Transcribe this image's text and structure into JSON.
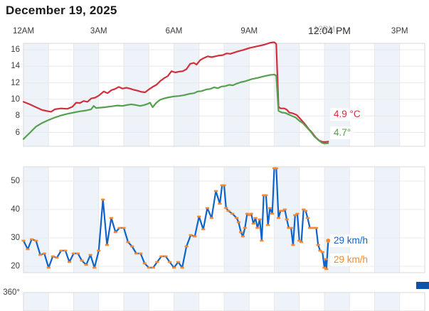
{
  "page": {
    "title": "December 19, 2025",
    "current_time_label": "12:04 PM"
  },
  "colors": {
    "temperature_line": "#d12f3b",
    "secondary_temperature_line": "#55a04f",
    "wind_line": "#1063c8",
    "wind_marker": "#f68a33",
    "band": "#eef3f9",
    "grid": "#e8e8e8",
    "border": "#d9d9d9",
    "legend_swatch": "#0953ad"
  },
  "chart_data": [
    {
      "id": "temperature",
      "type": "line",
      "title": "",
      "xlabel": "",
      "ylabel": "",
      "x_unit": "hours-from-midnight",
      "xlim": [
        0,
        16
      ],
      "ylim": [
        4.3,
        17
      ],
      "grid": true,
      "shaded_hours": [
        0,
        2,
        4,
        6,
        8,
        10,
        12,
        14
      ],
      "yticks": [
        16,
        14,
        12,
        10,
        8,
        6
      ],
      "xticks": [
        {
          "t": 0,
          "label": "12AM",
          "muted": false
        },
        {
          "t": 3,
          "label": "3AM",
          "muted": false
        },
        {
          "t": 6,
          "label": "6AM",
          "muted": false
        },
        {
          "t": 9,
          "label": "9AM",
          "muted": false
        },
        {
          "t": 12,
          "label": "12PM",
          "muted": true
        },
        {
          "t": 15,
          "label": "3PM",
          "muted": false
        }
      ],
      "current_time_t": 12.2,
      "series": [
        {
          "name": "temperature",
          "color": "#d12f3b",
          "end_label": {
            "text": "4.9 °C",
            "value": 4.9
          },
          "points": [
            [
              0,
              9.7
            ],
            [
              0.25,
              9.4
            ],
            [
              0.5,
              9.05
            ],
            [
              0.75,
              8.7
            ],
            [
              1,
              8.55
            ],
            [
              1.1,
              8.5
            ],
            [
              1.25,
              8.8
            ],
            [
              1.5,
              8.9
            ],
            [
              1.75,
              8.85
            ],
            [
              1.95,
              9.1
            ],
            [
              2.1,
              9.6
            ],
            [
              2.25,
              9.55
            ],
            [
              2.4,
              9.8
            ],
            [
              2.55,
              9.7
            ],
            [
              2.7,
              10.1
            ],
            [
              2.85,
              10.2
            ],
            [
              3,
              10.45
            ],
            [
              3.2,
              10.95
            ],
            [
              3.35,
              10.75
            ],
            [
              3.5,
              11.1
            ],
            [
              3.65,
              11.25
            ],
            [
              3.8,
              11.5
            ],
            [
              3.95,
              11.3
            ],
            [
              4.1,
              11.4
            ],
            [
              4.25,
              11.3
            ],
            [
              4.4,
              11.15
            ],
            [
              4.55,
              11.05
            ],
            [
              4.7,
              10.9
            ],
            [
              4.85,
              10.85
            ],
            [
              5,
              11.2
            ],
            [
              5.15,
              11.5
            ],
            [
              5.3,
              11.75
            ],
            [
              5.45,
              12.2
            ],
            [
              5.6,
              12.55
            ],
            [
              5.75,
              12.8
            ],
            [
              5.9,
              13.4
            ],
            [
              6.05,
              13.25
            ],
            [
              6.2,
              13.35
            ],
            [
              6.35,
              13.4
            ],
            [
              6.5,
              13.65
            ],
            [
              6.65,
              14.3
            ],
            [
              6.8,
              14.4
            ],
            [
              6.9,
              14.2
            ],
            [
              7.05,
              14.75
            ],
            [
              7.2,
              15.0
            ],
            [
              7.35,
              15.2
            ],
            [
              7.5,
              15.1
            ],
            [
              7.65,
              15.2
            ],
            [
              7.8,
              15.3
            ],
            [
              7.95,
              15.35
            ],
            [
              8.1,
              15.55
            ],
            [
              8.25,
              15.5
            ],
            [
              8.4,
              15.65
            ],
            [
              8.55,
              15.8
            ],
            [
              8.75,
              15.95
            ],
            [
              9,
              16.2
            ],
            [
              9.3,
              16.4
            ],
            [
              9.6,
              16.6
            ],
            [
              9.85,
              16.85
            ],
            [
              10,
              16.9
            ],
            [
              10.08,
              16.7
            ],
            [
              10.17,
              9.1
            ],
            [
              10.25,
              8.9
            ],
            [
              10.4,
              8.9
            ],
            [
              10.5,
              8.75
            ],
            [
              10.6,
              8.4
            ],
            [
              10.75,
              8.3
            ],
            [
              10.9,
              8.1
            ],
            [
              11.05,
              7.6
            ],
            [
              11.2,
              7.1
            ],
            [
              11.35,
              6.5
            ],
            [
              11.5,
              6.0
            ],
            [
              11.65,
              5.4
            ],
            [
              11.8,
              5.0
            ],
            [
              11.95,
              4.85
            ],
            [
              12.05,
              4.85
            ],
            [
              12.15,
              4.9
            ]
          ]
        },
        {
          "name": "secondary-temperature",
          "color": "#55a04f",
          "end_label": {
            "text": "4.7°",
            "value": 4.7
          },
          "points": [
            [
              0,
              5.2
            ],
            [
              0.25,
              5.95
            ],
            [
              0.5,
              6.7
            ],
            [
              0.75,
              7.15
            ],
            [
              1,
              7.5
            ],
            [
              1.25,
              7.8
            ],
            [
              1.5,
              8.05
            ],
            [
              1.75,
              8.25
            ],
            [
              2,
              8.4
            ],
            [
              2.25,
              8.55
            ],
            [
              2.5,
              8.65
            ],
            [
              2.7,
              8.8
            ],
            [
              2.8,
              9.2
            ],
            [
              2.9,
              8.95
            ],
            [
              3.05,
              9.0
            ],
            [
              3.25,
              9.05
            ],
            [
              3.5,
              9.15
            ],
            [
              3.75,
              9.25
            ],
            [
              3.95,
              9.2
            ],
            [
              4.1,
              9.3
            ],
            [
              4.3,
              9.4
            ],
            [
              4.5,
              9.3
            ],
            [
              4.65,
              9.2
            ],
            [
              4.8,
              9.3
            ],
            [
              4.95,
              9.45
            ],
            [
              5.05,
              9.6
            ],
            [
              5.15,
              9.05
            ],
            [
              5.3,
              9.6
            ],
            [
              5.45,
              9.95
            ],
            [
              5.6,
              10.1
            ],
            [
              5.8,
              10.25
            ],
            [
              6,
              10.35
            ],
            [
              6.2,
              10.4
            ],
            [
              6.4,
              10.5
            ],
            [
              6.6,
              10.65
            ],
            [
              6.8,
              10.75
            ],
            [
              6.95,
              10.95
            ],
            [
              7.1,
              11.0
            ],
            [
              7.3,
              11.2
            ],
            [
              7.45,
              11.25
            ],
            [
              7.6,
              11.45
            ],
            [
              7.75,
              11.35
            ],
            [
              7.9,
              11.55
            ],
            [
              8.05,
              11.6
            ],
            [
              8.2,
              11.75
            ],
            [
              8.35,
              11.7
            ],
            [
              8.5,
              11.9
            ],
            [
              8.65,
              12.05
            ],
            [
              8.85,
              12.2
            ],
            [
              9.1,
              12.45
            ],
            [
              9.35,
              12.6
            ],
            [
              9.6,
              12.8
            ],
            [
              9.85,
              12.95
            ],
            [
              10,
              13.0
            ],
            [
              10.08,
              12.85
            ],
            [
              10.17,
              8.6
            ],
            [
              10.3,
              8.4
            ],
            [
              10.45,
              8.35
            ],
            [
              10.55,
              8.2
            ],
            [
              10.7,
              8.0
            ],
            [
              10.85,
              7.8
            ],
            [
              11,
              7.4
            ],
            [
              11.15,
              7.1
            ],
            [
              11.3,
              6.6
            ],
            [
              11.45,
              6.1
            ],
            [
              11.6,
              5.5
            ],
            [
              11.75,
              5.1
            ],
            [
              11.9,
              4.75
            ],
            [
              12.0,
              4.65
            ],
            [
              12.15,
              4.7
            ]
          ]
        }
      ]
    },
    {
      "id": "wind-speed",
      "type": "line",
      "title": "",
      "xlabel": "",
      "ylabel": "",
      "x_unit": "hours-from-midnight",
      "xlim": [
        0,
        16
      ],
      "ylim": [
        18,
        55
      ],
      "grid": true,
      "shaded_hours": [
        0,
        2,
        4,
        6,
        8,
        10,
        12,
        14
      ],
      "yticks": [
        50,
        40,
        30,
        20
      ],
      "series": [
        {
          "name": "wind-speed",
          "color": "#1063c8",
          "marker_color": "#f68a33",
          "end_labels": [
            {
              "text": "29 km/h",
              "value": 29,
              "color": "#1063c8"
            },
            {
              "text": "29 km/h",
              "value": 29,
              "color": "#f68a33"
            }
          ],
          "points": [
            [
              0,
              29
            ],
            [
              0.17,
              26
            ],
            [
              0.33,
              29.5
            ],
            [
              0.5,
              29
            ],
            [
              0.67,
              24
            ],
            [
              0.83,
              24.5
            ],
            [
              1,
              19.5
            ],
            [
              1.17,
              23.5
            ],
            [
              1.33,
              23
            ],
            [
              1.5,
              25.5
            ],
            [
              1.67,
              25.5
            ],
            [
              1.83,
              21.5
            ],
            [
              2,
              24.5
            ],
            [
              2.17,
              24.5
            ],
            [
              2.33,
              22
            ],
            [
              2.5,
              20.5
            ],
            [
              2.67,
              24
            ],
            [
              2.83,
              19.5
            ],
            [
              3,
              25.5
            ],
            [
              3.17,
              43.5
            ],
            [
              3.33,
              27.5
            ],
            [
              3.5,
              37
            ],
            [
              3.67,
              32
            ],
            [
              3.83,
              33.5
            ],
            [
              4,
              33.5
            ],
            [
              4.17,
              28.5
            ],
            [
              4.33,
              27
            ],
            [
              4.5,
              24.5
            ],
            [
              4.67,
              24.5
            ],
            [
              4.83,
              21
            ],
            [
              5,
              19.5
            ],
            [
              5.17,
              19.5
            ],
            [
              5.33,
              21.5
            ],
            [
              5.5,
              23.5
            ],
            [
              5.67,
              23.5
            ],
            [
              5.83,
              21.5
            ],
            [
              6,
              19.5
            ],
            [
              6.17,
              21.5
            ],
            [
              6.33,
              19.5
            ],
            [
              6.5,
              27
            ],
            [
              6.67,
              31
            ],
            [
              6.83,
              30.5
            ],
            [
              7,
              37.5
            ],
            [
              7.17,
              33
            ],
            [
              7.33,
              40.5
            ],
            [
              7.5,
              37
            ],
            [
              7.67,
              46.5
            ],
            [
              7.83,
              42
            ],
            [
              7.92,
              48.5
            ],
            [
              8,
              48.5
            ],
            [
              8.08,
              40.5
            ],
            [
              8.17,
              39.5
            ],
            [
              8.33,
              38.5
            ],
            [
              8.5,
              37
            ],
            [
              8.58,
              35.5
            ],
            [
              8.67,
              32
            ],
            [
              8.75,
              30.5
            ],
            [
              8.83,
              33.5
            ],
            [
              8.92,
              38.5
            ],
            [
              9,
              38
            ],
            [
              9.08,
              38.5
            ],
            [
              9.17,
              35
            ],
            [
              9.25,
              37
            ],
            [
              9.33,
              33.5
            ],
            [
              9.42,
              36.5
            ],
            [
              9.5,
              29
            ],
            [
              9.58,
              45
            ],
            [
              9.67,
              45
            ],
            [
              9.75,
              34.5
            ],
            [
              9.83,
              40.5
            ],
            [
              9.92,
              38.5
            ],
            [
              10,
              54.5
            ],
            [
              10.08,
              54.5
            ],
            [
              10.17,
              37
            ],
            [
              10.25,
              39.5
            ],
            [
              10.33,
              39.5
            ],
            [
              10.42,
              40
            ],
            [
              10.5,
              36.5
            ],
            [
              10.58,
              33.5
            ],
            [
              10.67,
              33.5
            ],
            [
              10.75,
              27.5
            ],
            [
              10.83,
              38
            ],
            [
              10.92,
              38.5
            ],
            [
              11,
              29
            ],
            [
              11.08,
              28.5
            ],
            [
              11.17,
              40
            ],
            [
              11.25,
              39.5
            ],
            [
              11.33,
              37
            ],
            [
              11.42,
              33.5
            ],
            [
              11.5,
              33.5
            ],
            [
              11.58,
              33.5
            ],
            [
              11.67,
              33.5
            ],
            [
              11.75,
              27.5
            ],
            [
              11.83,
              25.5
            ],
            [
              11.92,
              25
            ],
            [
              12,
              19.5
            ],
            [
              12.05,
              22.5
            ],
            [
              12.08,
              19
            ],
            [
              12.15,
              29
            ]
          ]
        }
      ]
    },
    {
      "id": "wind-direction",
      "type": "line",
      "title": "",
      "x_unit": "hours-from-midnight",
      "xlim": [
        0,
        16
      ],
      "grid": true,
      "shaded_hours": [
        0,
        2,
        4,
        6,
        8,
        10,
        12,
        14
      ],
      "yticks": [
        "360°"
      ],
      "series": []
    }
  ]
}
